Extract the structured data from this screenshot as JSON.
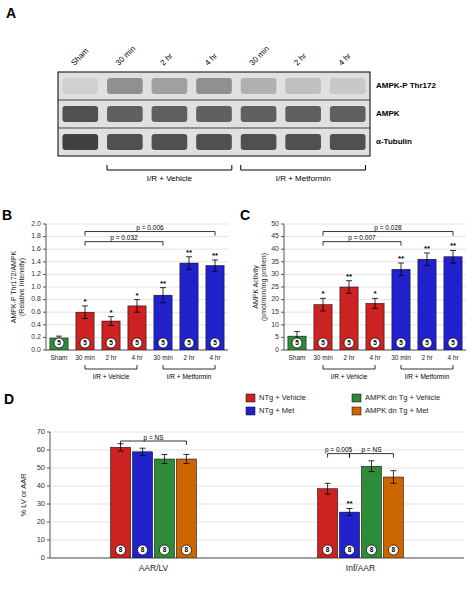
{
  "chart_data": [
    {
      "type": "blot",
      "title": "A",
      "categories": [
        "Sham",
        "30 min",
        "2 hr",
        "4 hr",
        "30 min",
        "2 hr",
        "4 hr"
      ],
      "series": [
        {
          "name": "AMPK-P Thr172",
          "colors": [
            "#d0d0d0",
            "#909090",
            "#a0a0a0",
            "#909090",
            "#b0b0b0",
            "#c0c0c0",
            "#c8c8c8"
          ]
        },
        {
          "name": "AMPK",
          "colors": [
            "#505050",
            "#606060",
            "#606060",
            "#606060",
            "#606060",
            "#606060",
            "#606060"
          ]
        },
        {
          "name": "α-Tubulin",
          "colors": [
            "#404040",
            "#505050",
            "#505050",
            "#505050",
            "#505050",
            "#505050",
            "#505050"
          ]
        }
      ],
      "annotations": {
        "group_labels": [
          "I/R + Vehicle",
          "I/R + Metformin"
        ]
      }
    },
    {
      "type": "bar",
      "title": "B",
      "categories": [
        "Sham",
        "30 min",
        "2 hr",
        "4 hr",
        "30 min",
        "2 hr",
        "4 hr"
      ],
      "values": [
        0.19,
        0.6,
        0.46,
        0.7,
        0.87,
        1.38,
        1.34
      ],
      "errors": [
        0.03,
        0.1,
        0.07,
        0.1,
        0.12,
        0.1,
        0.09
      ],
      "colors": [
        "#2e8b3a",
        "#cc2222",
        "#cc2222",
        "#cc2222",
        "#2222cc",
        "#2222cc",
        "#2222cc"
      ],
      "ylabel": "AMPK-P Thr172/AMPK\n(Relative Intensity)",
      "ylim": [
        0,
        2.0
      ],
      "yticks": [
        {
          "value": 0,
          "label": "0.0"
        },
        0.2,
        0.4,
        0.6,
        0.8,
        {
          "value": 1.0,
          "label": "1.0"
        },
        1.2,
        1.4,
        1.6,
        1.8,
        {
          "value": 2.0,
          "label": "2.0"
        }
      ],
      "grid": true,
      "annotations": {
        "n_labels": [
          "5",
          "5",
          "5",
          "5",
          "5",
          "5",
          "5"
        ],
        "star_labels": [
          null,
          "*",
          "*",
          "*",
          "**",
          "**",
          "**"
        ],
        "group_labels": [
          "I/R + Vehicle",
          "I/R + Metformin"
        ],
        "sig_bars": [
          {
            "x1": 1,
            "x2": 4,
            "y": 1.72,
            "text": "p = 0.032"
          },
          {
            "x1": 1,
            "x2": 6,
            "y": 1.88,
            "text": "p = 0.006"
          }
        ]
      }
    },
    {
      "type": "bar",
      "title": "C",
      "categories": [
        "Sham",
        "30 min",
        "2 hr",
        "4 hr",
        "30 min",
        "2 hr",
        "4 hr"
      ],
      "values": [
        5.5,
        18.0,
        25.0,
        18.5,
        32.0,
        36.0,
        37.0
      ],
      "errors": [
        1.8,
        2.5,
        2.5,
        2.0,
        2.5,
        2.5,
        2.5
      ],
      "colors": [
        "#2e8b3a",
        "#cc2222",
        "#cc2222",
        "#cc2222",
        "#2222cc",
        "#2222cc",
        "#2222cc"
      ],
      "ylabel": "AMPK Activity\n(pmol/min/mg protien)",
      "ylim": [
        0,
        50
      ],
      "yticks": [
        0,
        5,
        10,
        15,
        20,
        25,
        30,
        35,
        40,
        45,
        50
      ],
      "grid": true,
      "annotations": {
        "n_labels": [
          "5",
          "5",
          "5",
          "5",
          "5",
          "5",
          "5"
        ],
        "star_labels": [
          null,
          "*",
          "**",
          "*",
          "**",
          "**",
          "**"
        ],
        "group_labels": [
          "I/R + Vehicle",
          "I/R + Metformin"
        ],
        "sig_bars": [
          {
            "x1": 1,
            "x2": 4,
            "y": 43,
            "text": "p = 0.007"
          },
          {
            "x1": 1,
            "x2": 6,
            "y": 47,
            "text": "p = 0.028"
          }
        ]
      }
    },
    {
      "type": "bar",
      "title": "D",
      "categories": [
        "AAR/LV",
        "Inf/AAR"
      ],
      "series": [
        {
          "name": "NTg + Vehicle",
          "color": "#cc2222",
          "values": [
            61.5,
            38.5
          ],
          "errors": [
            2.0,
            3.0
          ]
        },
        {
          "name": "NTg + Met",
          "color": "#2222cc",
          "values": [
            59.0,
            25.5
          ],
          "errors": [
            2.0,
            2.0
          ]
        },
        {
          "name": "AMPK dn Tg + Vehicle",
          "color": "#2e8b3a",
          "values": [
            55.0,
            51.0
          ],
          "errors": [
            2.5,
            3.0
          ]
        },
        {
          "name": "AMPK dn Tg + Met",
          "color": "#cc6600",
          "values": [
            55.0,
            45.0
          ],
          "errors": [
            2.5,
            3.5
          ]
        }
      ],
      "ylabel": "% LV or AAR",
      "ylim": [
        0,
        70
      ],
      "yticks": [
        0,
        10,
        20,
        30,
        40,
        50,
        60,
        70
      ],
      "grid": true,
      "legend": "upper-right",
      "annotations": {
        "n_labels": [
          "8",
          "8",
          "8",
          "8"
        ],
        "stars": [
          {
            "series": 1,
            "category": 1,
            "text": "**"
          }
        ],
        "sig_bars": [
          {
            "category": 0,
            "s1": 0,
            "s2": 3,
            "y": 65,
            "text": "p = NS"
          },
          {
            "category": 1,
            "s1": 0,
            "s2": 1,
            "y": 58,
            "text": "p = 0.005"
          },
          {
            "category": 1,
            "s1": 1,
            "s2": 3,
            "y": 58,
            "text": "p = NS"
          }
        ]
      }
    }
  ]
}
